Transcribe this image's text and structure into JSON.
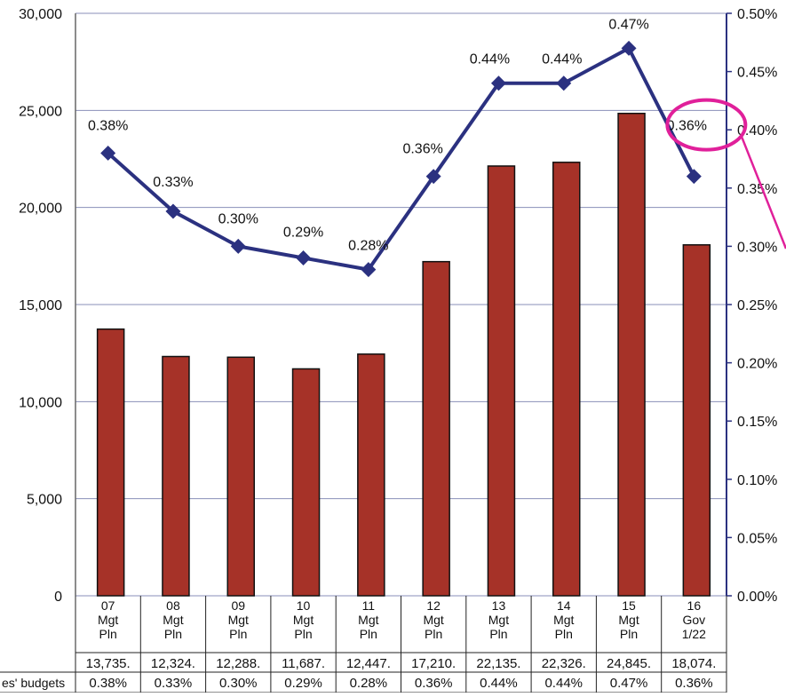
{
  "chart_data": {
    "type": "bar",
    "categories": [
      [
        "07",
        "Mgt",
        "Pln"
      ],
      [
        "08",
        "Mgt",
        "Pln"
      ],
      [
        "09",
        "Mgt",
        "Pln"
      ],
      [
        "10",
        "Mgt",
        "Pln"
      ],
      [
        "11",
        "Mgt",
        "Pln"
      ],
      [
        "12",
        "Mgt",
        "Pln"
      ],
      [
        "13",
        "Mgt",
        "Pln"
      ],
      [
        "14",
        "Mgt",
        "Pln"
      ],
      [
        "15",
        "Mgt",
        "Pln"
      ],
      [
        "16",
        "Gov",
        "1/22"
      ]
    ],
    "series": [
      {
        "type": "bar",
        "axis": "left",
        "values": [
          13735,
          12324,
          12288,
          11687,
          12447,
          17210,
          22135,
          22326,
          24845,
          18074
        ]
      },
      {
        "type": "line",
        "axis": "right",
        "values": [
          0.38,
          0.33,
          0.3,
          0.29,
          0.28,
          0.36,
          0.44,
          0.44,
          0.47,
          0.36
        ],
        "labels": [
          "0.38%",
          "0.33%",
          "0.30%",
          "0.29%",
          "0.28%",
          "0.36%",
          "0.44%",
          "0.44%",
          "0.47%",
          "0.36%"
        ]
      }
    ],
    "y_left": {
      "range": [
        0,
        30000
      ],
      "ticks": [
        "0",
        "5,000",
        "10,000",
        "15,000",
        "20,000",
        "25,000",
        "30,000"
      ]
    },
    "y_right": {
      "range": [
        0,
        0.5
      ],
      "ticks": [
        "0.00%",
        "0.05%",
        "0.10%",
        "0.15%",
        "0.20%",
        "0.25%",
        "0.30%",
        "0.35%",
        "0.40%",
        "0.45%",
        "0.50%"
      ]
    },
    "table": {
      "row1": [
        "13,735.",
        "12,324.",
        "12,288.",
        "11,687.",
        "12,447.",
        "17,210.",
        "22,135.",
        "22,326.",
        "24,845.",
        "18,074."
      ],
      "row2_label": "es' budgets",
      "row2": [
        "0.38%",
        "0.33%",
        "0.30%",
        "0.29%",
        "0.28%",
        "0.36%",
        "0.44%",
        "0.44%",
        "0.47%",
        "0.36%"
      ]
    },
    "grid": true,
    "colors": {
      "bar": "#a63228",
      "line": "#2b3180",
      "highlight": "#e0209a",
      "axis": "#2b3180"
    },
    "highlight_index": 9
  }
}
